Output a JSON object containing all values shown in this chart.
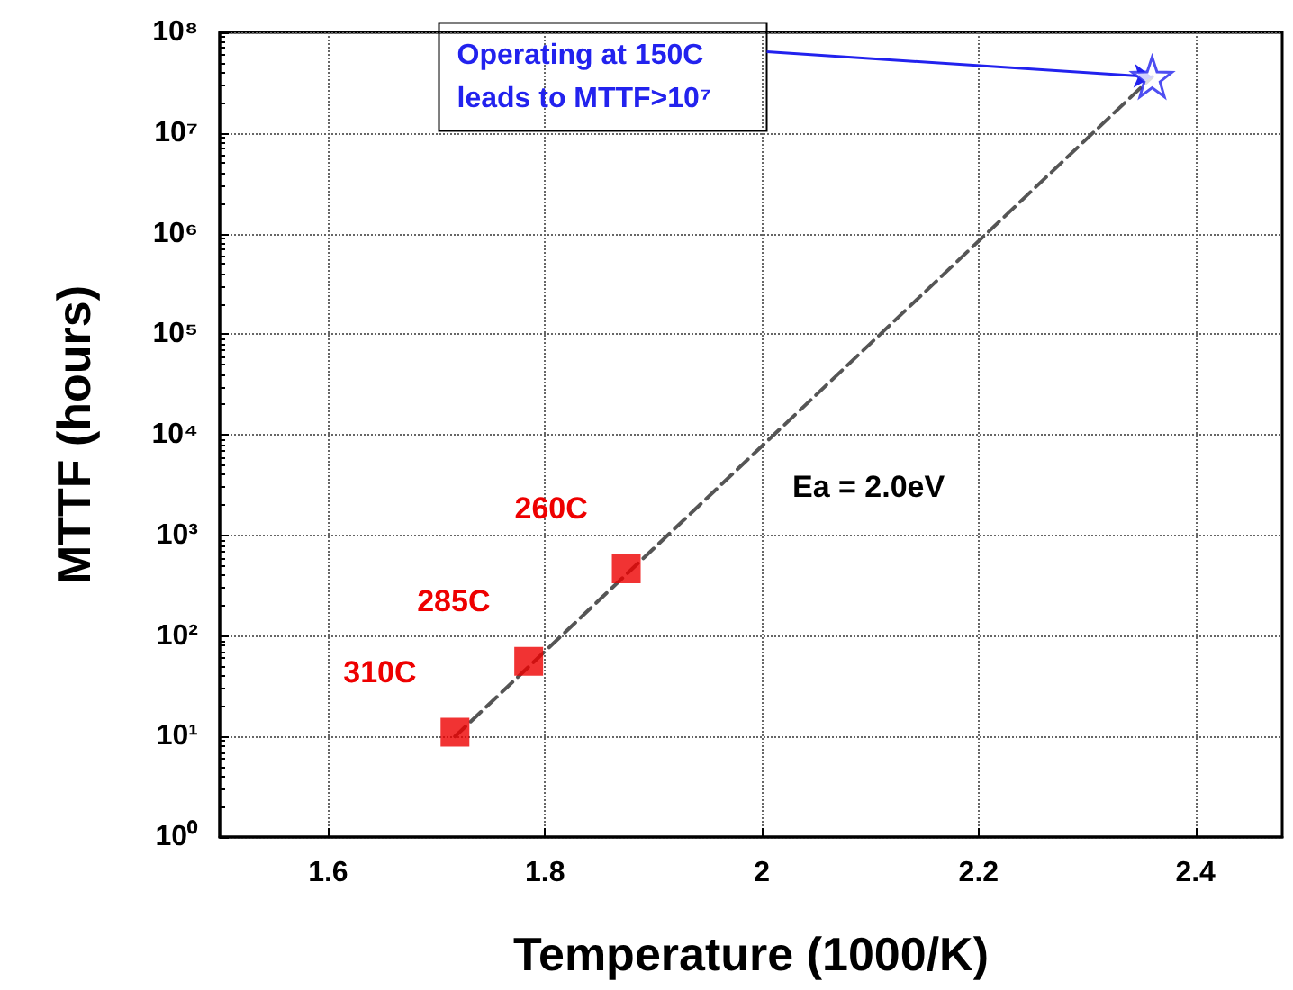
{
  "chart_data": {
    "type": "scatter",
    "xlabel": "Temperature (1000/K)",
    "ylabel": "MTTF (hours)",
    "log": "y",
    "grid": true,
    "xlim": [
      1.5,
      2.48
    ],
    "xticks": [
      1.6,
      1.8,
      2.0,
      2.2,
      2.4
    ],
    "ylim": [
      1,
      100000000
    ],
    "yticks": [
      {
        "value": 1,
        "label": "10⁰"
      },
      {
        "value": 10,
        "label": "10¹"
      },
      {
        "value": 100,
        "label": "10²"
      },
      {
        "value": 1000,
        "label": "10³"
      },
      {
        "value": 10000,
        "label": "10⁴"
      },
      {
        "value": 100000,
        "label": "10⁵"
      },
      {
        "value": 1000000,
        "label": "10⁶"
      },
      {
        "value": 10000000,
        "label": "10⁷"
      },
      {
        "value": 100000000,
        "label": "10⁸"
      }
    ],
    "series": [
      {
        "type": "line",
        "color": "#555555",
        "line_style": "dashed",
        "marker": "none",
        "x": [
          1.717,
          2.36
        ],
        "values": [
          10,
          36000000
        ]
      },
      {
        "type": "scatter",
        "color": "#ee0000",
        "marker": "square",
        "x": [
          1.717,
          1.785,
          1.875
        ],
        "values": [
          11,
          56,
          465
        ]
      },
      {
        "type": "scatter",
        "color": "#2222ee",
        "marker": "star",
        "x": [
          2.36
        ],
        "values": [
          36000000
        ]
      }
    ],
    "annotations": [
      {
        "text": "310C",
        "x": 1.717,
        "y": 11
      },
      {
        "text": "285C",
        "x": 1.785,
        "y": 56
      },
      {
        "text": "260C",
        "x": 1.875,
        "y": 465
      },
      "Operating at 150C leads to MTTF>10⁷",
      "Ea = 2.0eV"
    ]
  }
}
